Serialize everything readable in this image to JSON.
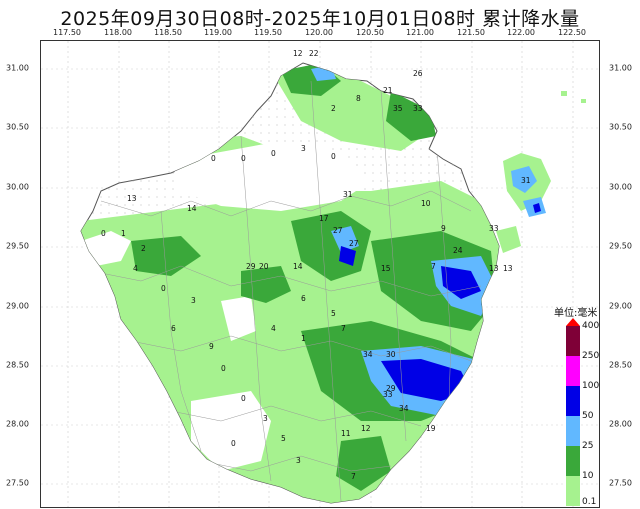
{
  "title": "2025年09月30日08时-2025年10月01日08时  累计降水量",
  "lon_ticks": [
    "117.50",
    "118.00",
    "118.50",
    "119.00",
    "119.50",
    "120.00",
    "120.50",
    "121.00",
    "121.50",
    "122.00",
    "122.50"
  ],
  "lat_ticks": [
    "31.00",
    "30.50",
    "30.00",
    "29.50",
    "29.00",
    "28.50",
    "28.00",
    "27.50"
  ],
  "legend": {
    "title": "单位:毫米",
    "levels": [
      {
        "label": "400",
        "color": "#ff0000"
      },
      {
        "label": "250",
        "color": "#7f0037"
      },
      {
        "label": "100",
        "color": "#ff00ff"
      },
      {
        "label": "50",
        "color": "#0000e6"
      },
      {
        "label": "25",
        "color": "#61b8ff"
      },
      {
        "label": "10",
        "color": "#3aa83a"
      },
      {
        "label": "0.1",
        "color": "#a6f28f"
      }
    ]
  },
  "station_values": [
    {
      "v": "0"
    },
    {
      "v": "3"
    },
    {
      "v": "2"
    },
    {
      "v": "5"
    },
    {
      "v": "8"
    },
    {
      "v": "12"
    },
    {
      "v": "21"
    },
    {
      "v": "26"
    },
    {
      "v": "31"
    },
    {
      "v": "33"
    },
    {
      "v": "35"
    },
    {
      "v": "30"
    },
    {
      "v": "14"
    },
    {
      "v": "20"
    },
    {
      "v": "29"
    },
    {
      "v": "17"
    },
    {
      "v": "13"
    },
    {
      "v": "1"
    },
    {
      "v": "4"
    },
    {
      "v": "6"
    },
    {
      "v": "9"
    },
    {
      "v": "10"
    },
    {
      "v": "15"
    },
    {
      "v": "22"
    },
    {
      "v": "27"
    },
    {
      "v": "34"
    },
    {
      "v": "7"
    },
    {
      "v": "11"
    },
    {
      "v": "19"
    },
    {
      "v": "24"
    }
  ]
}
